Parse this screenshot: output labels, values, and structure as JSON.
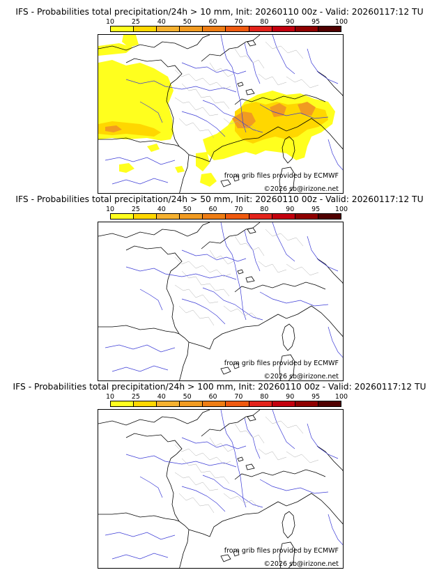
{
  "colorbar": {
    "ticks": [
      "10",
      "25",
      "40",
      "50",
      "60",
      "70",
      "80",
      "90",
      "95",
      "100"
    ],
    "colors": [
      "#ffff1e",
      "#ffd700",
      "#f5b130",
      "#f19b21",
      "#ee7d14",
      "#ef5a10",
      "#e3231b",
      "#c3000e",
      "#8f0000",
      "#500000"
    ]
  },
  "panels": [
    {
      "title": "IFS - Probabilities total precipitation/24h > 10 mm, Init: 20260110 00z - Valid: 20260117:12 TU",
      "credit_source": "from grib files provided by ECMWF",
      "credit_copyright": "©2026 sb@irizone.net"
    },
    {
      "title": "IFS - Probabilities total precipitation/24h > 50 mm, Init: 20260110 00z - Valid: 20260117:12 TU",
      "credit_source": "from grib files provided by ECMWF",
      "credit_copyright": "©2026 sb@irizone.net"
    },
    {
      "title": "IFS - Probabilities total precipitation/24h > 100 mm, Init: 20260110 00z - Valid: 20260117:12 TU",
      "credit_source": "from grib files provided by ECMWF",
      "credit_copyright": "©2026 sb@irizone.net"
    }
  ],
  "colors": {
    "coast": "#000000",
    "rivers": "#3a3ad6",
    "borders": "#b0b0b0",
    "prob_low": "#ffff1e",
    "prob_mid": "#ffd700",
    "prob_high": "#f19b21"
  }
}
